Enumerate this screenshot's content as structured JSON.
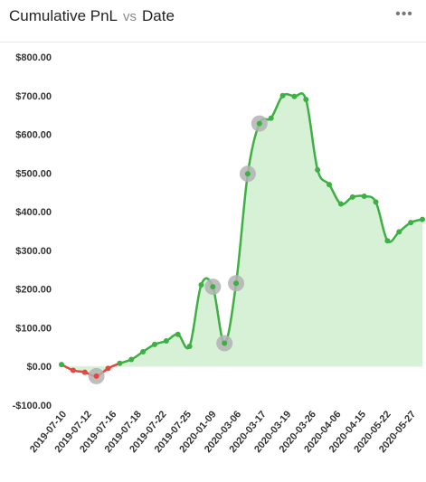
{
  "header": {
    "metric": "Cumulative PnL",
    "vs": "vs",
    "dimension": "Date",
    "menu_icon": "more-horizontal-icon"
  },
  "chart_data": {
    "type": "area",
    "title": "Cumulative PnL vs Date",
    "ylim": [
      -100,
      800
    ],
    "yticks": [
      -100,
      0,
      100,
      200,
      300,
      400,
      500,
      600,
      700,
      800
    ],
    "ytick_labels": [
      "-$100.00",
      "$0.00",
      "$100.00",
      "$200.00",
      "$300.00",
      "$400.00",
      "$500.00",
      "$600.00",
      "$700.00",
      "$800.00"
    ],
    "xtick_labels": [
      "2019-07-10",
      "2019-07-12",
      "2019-07-16",
      "2019-07-18",
      "2019-07-22",
      "2019-07-25",
      "2020-01-09",
      "2020-03-06",
      "2020-03-17",
      "2020-03-19",
      "2020-03-26",
      "2020-04-06",
      "2020-04-15",
      "2020-05-22",
      "2020-05-27"
    ],
    "grid": false,
    "colors": {
      "positive": "#3cb043",
      "negative": "#e8453c",
      "fill": "#d6f1d6",
      "highlight": "#b3b3b3"
    },
    "y": [
      5,
      -10,
      -15,
      -25,
      -5,
      8,
      18,
      38,
      57,
      66,
      83,
      52,
      211,
      206,
      60,
      215,
      498,
      628,
      642,
      700,
      698,
      690,
      508,
      470,
      420,
      438,
      440,
      425,
      325,
      348,
      372,
      380
    ],
    "highlighted": [
      3,
      13,
      14,
      15,
      16,
      17
    ]
  }
}
